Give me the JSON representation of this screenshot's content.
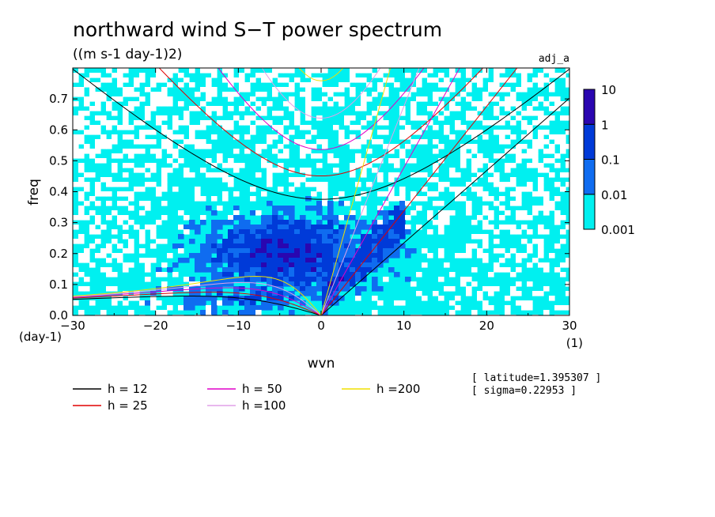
{
  "chart_data": {
    "type": "heatmap",
    "title": "northward wind S−T power spectrum",
    "subtitle": "((m s-1 day-1)2)",
    "dataset_label": "adj_a",
    "xlabel": "wvn",
    "ylabel": "freq",
    "x_unit": "(1)",
    "y_unit": "(day-1)",
    "xlim": [
      -30,
      30
    ],
    "ylim": [
      0,
      0.8
    ],
    "x_ticks": [
      -30,
      -20,
      -10,
      0,
      10,
      20,
      30
    ],
    "x_tick_labels": [
      "−30",
      "−20",
      "−10",
      "0",
      "10",
      "20",
      "30"
    ],
    "y_ticks": [
      0,
      0.1,
      0.2,
      0.3,
      0.4,
      0.5,
      0.6,
      0.7
    ],
    "y_tick_labels": [
      "0.0",
      "0.1",
      "0.2",
      "0.3",
      "0.4",
      "0.5",
      "0.6",
      "0.7"
    ],
    "colorbar": {
      "labels": [
        "0.001",
        "0.01",
        "0.1",
        "1",
        "10"
      ],
      "colors": [
        "#00f0f0",
        "#0f6cf0",
        "#003ad8",
        "#2a06b0"
      ]
    },
    "background_color": "#00f0f0",
    "info_lines": [
      "[ latitude=1.395307 ]",
      "[ sigma=0.22953 ]"
    ],
    "dispersion_curves": [
      {
        "name": "h = 12",
        "h": 12,
        "color": "#000000"
      },
      {
        "name": "h = 25",
        "h": 25,
        "color": "#e00000"
      },
      {
        "name": "h = 50",
        "h": 50,
        "color": "#e000c8"
      },
      {
        "name": "h =100",
        "h": 100,
        "color": "#e0a0e8"
      },
      {
        "name": "h =200",
        "h": 200,
        "color": "#f0e000"
      }
    ]
  }
}
